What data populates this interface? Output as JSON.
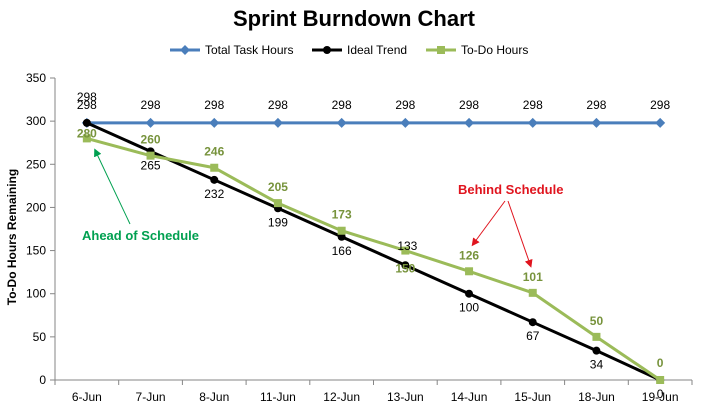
{
  "chart_data": {
    "type": "line",
    "title": "Sprint Burndown Chart",
    "xlabel": "",
    "ylabel": "To-Do Hours Remaining",
    "categories": [
      "6-Jun",
      "7-Jun",
      "8-Jun",
      "11-Jun",
      "12-Jun",
      "13-Jun",
      "14-Jun",
      "15-Jun",
      "18-Jun",
      "19-Jun"
    ],
    "ylim": [
      0,
      350
    ],
    "yticks": [
      0,
      50,
      100,
      150,
      200,
      250,
      300,
      350
    ],
    "grid": false,
    "legend_position": "top",
    "series": [
      {
        "name": "Total Task Hours",
        "color": "#4a7ebb",
        "marker": "diamond",
        "values": [
          298,
          298,
          298,
          298,
          298,
          298,
          298,
          298,
          298,
          298
        ],
        "labels": [
          "298",
          "298",
          "298",
          "298",
          "298",
          "298",
          "298",
          "298",
          "298",
          "298"
        ]
      },
      {
        "name": "Ideal Trend",
        "color": "#000000",
        "marker": "circle",
        "values": [
          298,
          265,
          232,
          199,
          166,
          133,
          100,
          67,
          34,
          0
        ],
        "labels": [
          "298",
          "265",
          "232",
          "199",
          "166",
          "133",
          "100",
          "67",
          "34",
          "0"
        ]
      },
      {
        "name": "To-Do Hours",
        "color": "#9bbb59",
        "marker": "square",
        "values": [
          280,
          260,
          246,
          205,
          173,
          150,
          126,
          101,
          50,
          0
        ],
        "labels": [
          "280",
          "260",
          "246",
          "205",
          "173",
          "150",
          "126",
          "101",
          "50",
          "0"
        ]
      }
    ],
    "annotations": [
      {
        "text": "Ahead of Schedule",
        "color": "#00a050"
      },
      {
        "text": "Behind Schedule",
        "color": "#e0141e"
      }
    ]
  }
}
